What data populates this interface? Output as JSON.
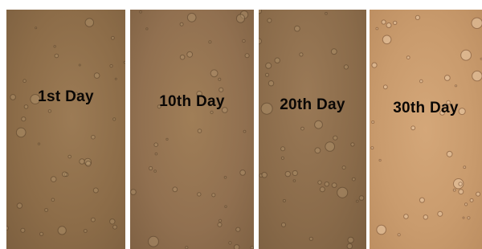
{
  "panels": [
    {
      "label": "1st Day"
    },
    {
      "label": "10th Day"
    },
    {
      "label": "20th Day"
    },
    {
      "label": "30th Day"
    }
  ]
}
